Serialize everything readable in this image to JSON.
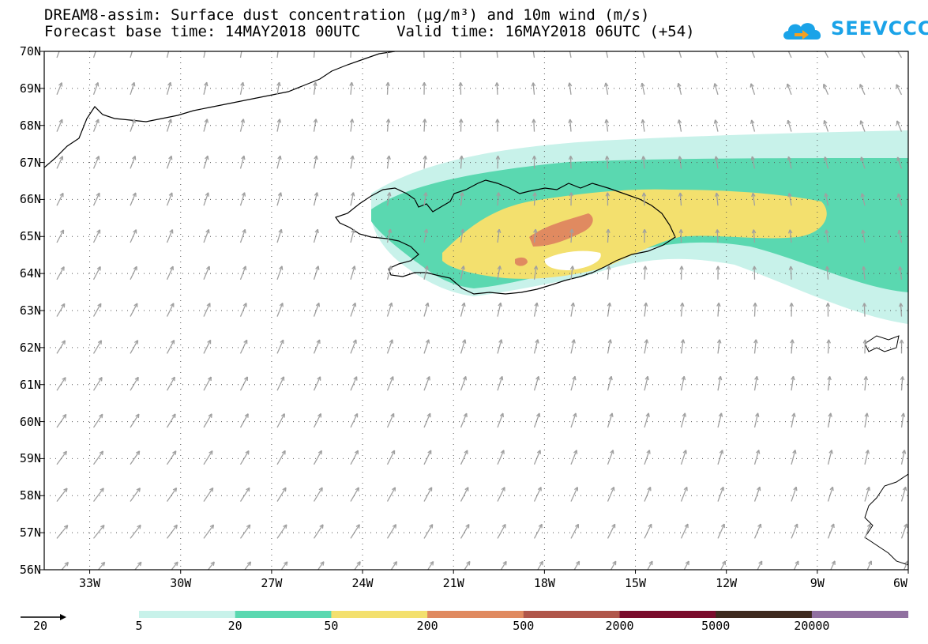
{
  "title": {
    "line1": "DREAM8-assim: Surface dust concentration (µg/m³) and 10m wind (m/s)",
    "line2": "Forecast base time: 14MAY2018 00UTC    Valid time: 16MAY2018 06UTC (+54)"
  },
  "logo": {
    "text": "SEEVCCC",
    "icon": "cloud-arrow-icon",
    "color": "#1aa3e8"
  },
  "map": {
    "lon_range": [
      -34.5,
      -6
    ],
    "lat_range": [
      56,
      70
    ],
    "lat_labels": [
      "70N",
      "69N",
      "68N",
      "67N",
      "66N",
      "65N",
      "64N",
      "63N",
      "62N",
      "61N",
      "60N",
      "59N",
      "58N",
      "57N",
      "56N"
    ],
    "lon_labels": [
      "33W",
      "30W",
      "27W",
      "24W",
      "21W",
      "18W",
      "15W",
      "12W",
      "9W",
      "6W"
    ],
    "grid": "dotted",
    "wind_arrow_color": "#a0a0a0",
    "coast_color": "#000000"
  },
  "legend": {
    "reference_arrow_label": "20",
    "colors": [
      "#c8f2ea",
      "#5ad8b0",
      "#f3e06e",
      "#e08a60",
      "#b0564a",
      "#7a0c2c",
      "#3e2a1e",
      "#9070a0"
    ],
    "labels": [
      "5",
      "20",
      "50",
      "200",
      "500",
      "2000",
      "5000",
      "20000"
    ]
  }
}
